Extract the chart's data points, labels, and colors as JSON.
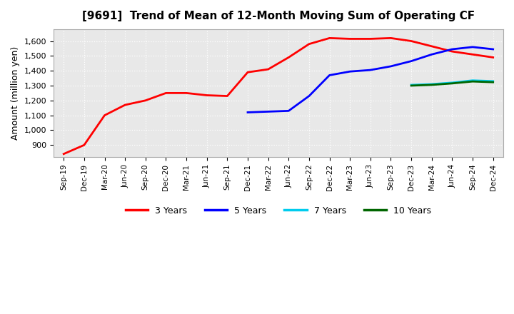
{
  "title": "[9691]  Trend of Mean of 12-Month Moving Sum of Operating CF",
  "ylabel": "Amount (million yen)",
  "background_color": "#ffffff",
  "x_labels": [
    "Sep-19",
    "Dec-19",
    "Mar-20",
    "Jun-20",
    "Sep-20",
    "Dec-20",
    "Mar-21",
    "Jun-21",
    "Sep-21",
    "Dec-21",
    "Mar-22",
    "Jun-22",
    "Sep-22",
    "Dec-22",
    "Mar-23",
    "Jun-23",
    "Sep-23",
    "Dec-23",
    "Mar-24",
    "Jun-24",
    "Sep-24",
    "Dec-24"
  ],
  "ylim": [
    820,
    1680
  ],
  "yticks": [
    900,
    1000,
    1100,
    1200,
    1300,
    1400,
    1500,
    1600
  ],
  "series": {
    "3y": {
      "color": "#ff0000",
      "label": "3 Years",
      "x": [
        0,
        1,
        2,
        3,
        4,
        5,
        6,
        7,
        8,
        9,
        10,
        11,
        12,
        13,
        14,
        15,
        16,
        17,
        18,
        19,
        20,
        21
      ],
      "y": [
        840,
        900,
        1100,
        1170,
        1200,
        1250,
        1250,
        1235,
        1230,
        1390,
        1410,
        1490,
        1580,
        1620,
        1615,
        1615,
        1620,
        1600,
        1565,
        1530,
        1510,
        1490
      ]
    },
    "5y": {
      "color": "#0000ff",
      "label": "5 Years",
      "x": [
        9,
        10,
        11,
        12,
        13,
        14,
        15,
        16,
        17,
        18,
        19,
        20,
        21
      ],
      "y": [
        1120,
        1125,
        1130,
        1230,
        1370,
        1395,
        1405,
        1430,
        1465,
        1510,
        1545,
        1560,
        1545
      ]
    },
    "7y": {
      "color": "#00ccee",
      "label": "7 Years",
      "x": [
        17,
        18,
        19,
        20,
        21
      ],
      "y": [
        1305,
        1310,
        1320,
        1335,
        1330
      ]
    },
    "10y": {
      "color": "#006600",
      "label": "10 Years",
      "x": [
        17,
        18,
        19,
        20,
        21
      ],
      "y": [
        1300,
        1305,
        1315,
        1328,
        1323
      ]
    }
  }
}
